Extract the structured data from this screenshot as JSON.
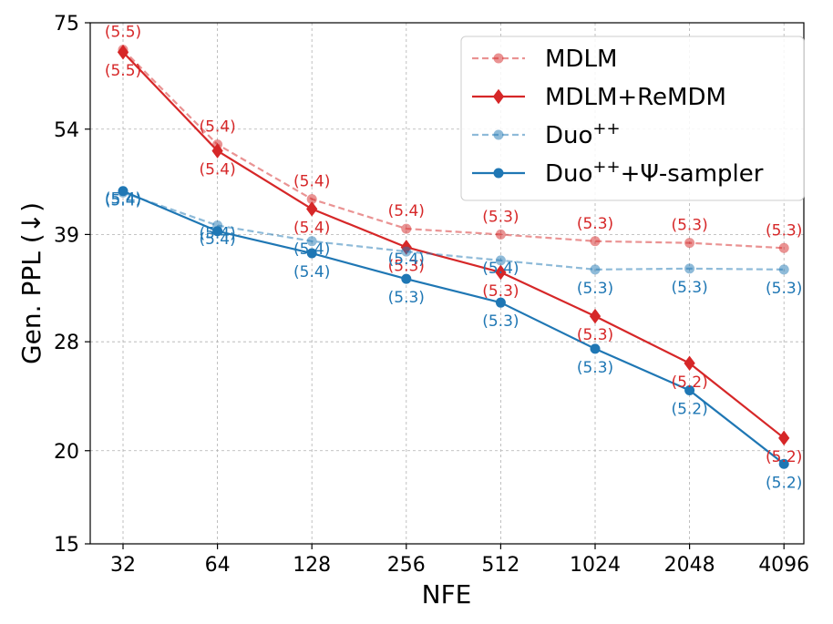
{
  "chart_data": {
    "type": "line",
    "xlabel": "NFE",
    "ylabel": "Gen. PPL (↓)",
    "x": [
      32,
      64,
      128,
      256,
      512,
      1024,
      2048,
      4096
    ],
    "xscale": "log2",
    "yscale": "log",
    "ylim": [
      15,
      75
    ],
    "yticks": [
      15,
      20,
      28,
      39,
      54,
      75
    ],
    "grid": true,
    "legend_position": "top-right",
    "legend": [
      {
        "pre": "MDLM",
        "sup": "",
        "post": ""
      },
      {
        "pre": "MDLM+ReMDM",
        "sup": "",
        "post": ""
      },
      {
        "pre": "Duo",
        "sup": "++",
        "post": ""
      },
      {
        "pre": "Duo",
        "sup": "++",
        "post": "+Ψ-sampler"
      }
    ],
    "series": [
      {
        "color": "#d62728",
        "alpha": 0.5,
        "dashed": true,
        "marker": "circle",
        "values": [
          69.0,
          51.5,
          43.5,
          39.7,
          39.0,
          38.2,
          38.0,
          37.4
        ],
        "labels": [
          "(5.5)",
          "(5.4)",
          "(5.4)",
          "(5.4)",
          "(5.3)",
          "(5.3)",
          "(5.3)",
          "(5.3)"
        ],
        "label_pos": [
          "above",
          "above",
          "above",
          "above",
          "above",
          "above",
          "above",
          "above"
        ]
      },
      {
        "color": "#d62728",
        "alpha": 1,
        "dashed": false,
        "marker": "diamond",
        "values": [
          68.5,
          50.5,
          42.2,
          37.5,
          34.7,
          30.3,
          26.2,
          20.8
        ],
        "labels": [
          "(5.5)",
          "(5.4)",
          "(5.4)",
          "(5.3)",
          "(5.3)",
          "(5.3)",
          "(5.2)",
          "(5.2)"
        ],
        "label_pos": [
          "below",
          "below",
          "below",
          "below",
          "below",
          "below",
          "below",
          "below"
        ]
      },
      {
        "color": "#1f77b4",
        "alpha": 0.5,
        "dashed": true,
        "marker": "circle",
        "values": [
          44.4,
          40.1,
          38.2,
          37.0,
          36.0,
          35.0,
          35.1,
          35.0
        ],
        "labels": [
          "(5.4)",
          "(5.4)",
          "(5.4)",
          "(5.4)",
          "(5.4)",
          "(5.3)",
          "(5.3)",
          "(5.3)"
        ],
        "label_pos": [
          "center",
          "center",
          "center",
          "center",
          "center",
          "below",
          "below",
          "below"
        ]
      },
      {
        "color": "#1f77b4",
        "alpha": 1,
        "dashed": false,
        "marker": "circle",
        "values": [
          44.6,
          39.4,
          36.8,
          34.0,
          31.6,
          27.4,
          24.1,
          19.2
        ],
        "labels": [
          "(5.4)",
          "(5.4)",
          "(5.4)",
          "(5.3)",
          "(5.3)",
          "(5.3)",
          "(5.2)",
          "(5.2)"
        ],
        "label_pos": [
          "center",
          "center",
          "below",
          "below",
          "below",
          "below",
          "below",
          "below"
        ]
      }
    ]
  }
}
